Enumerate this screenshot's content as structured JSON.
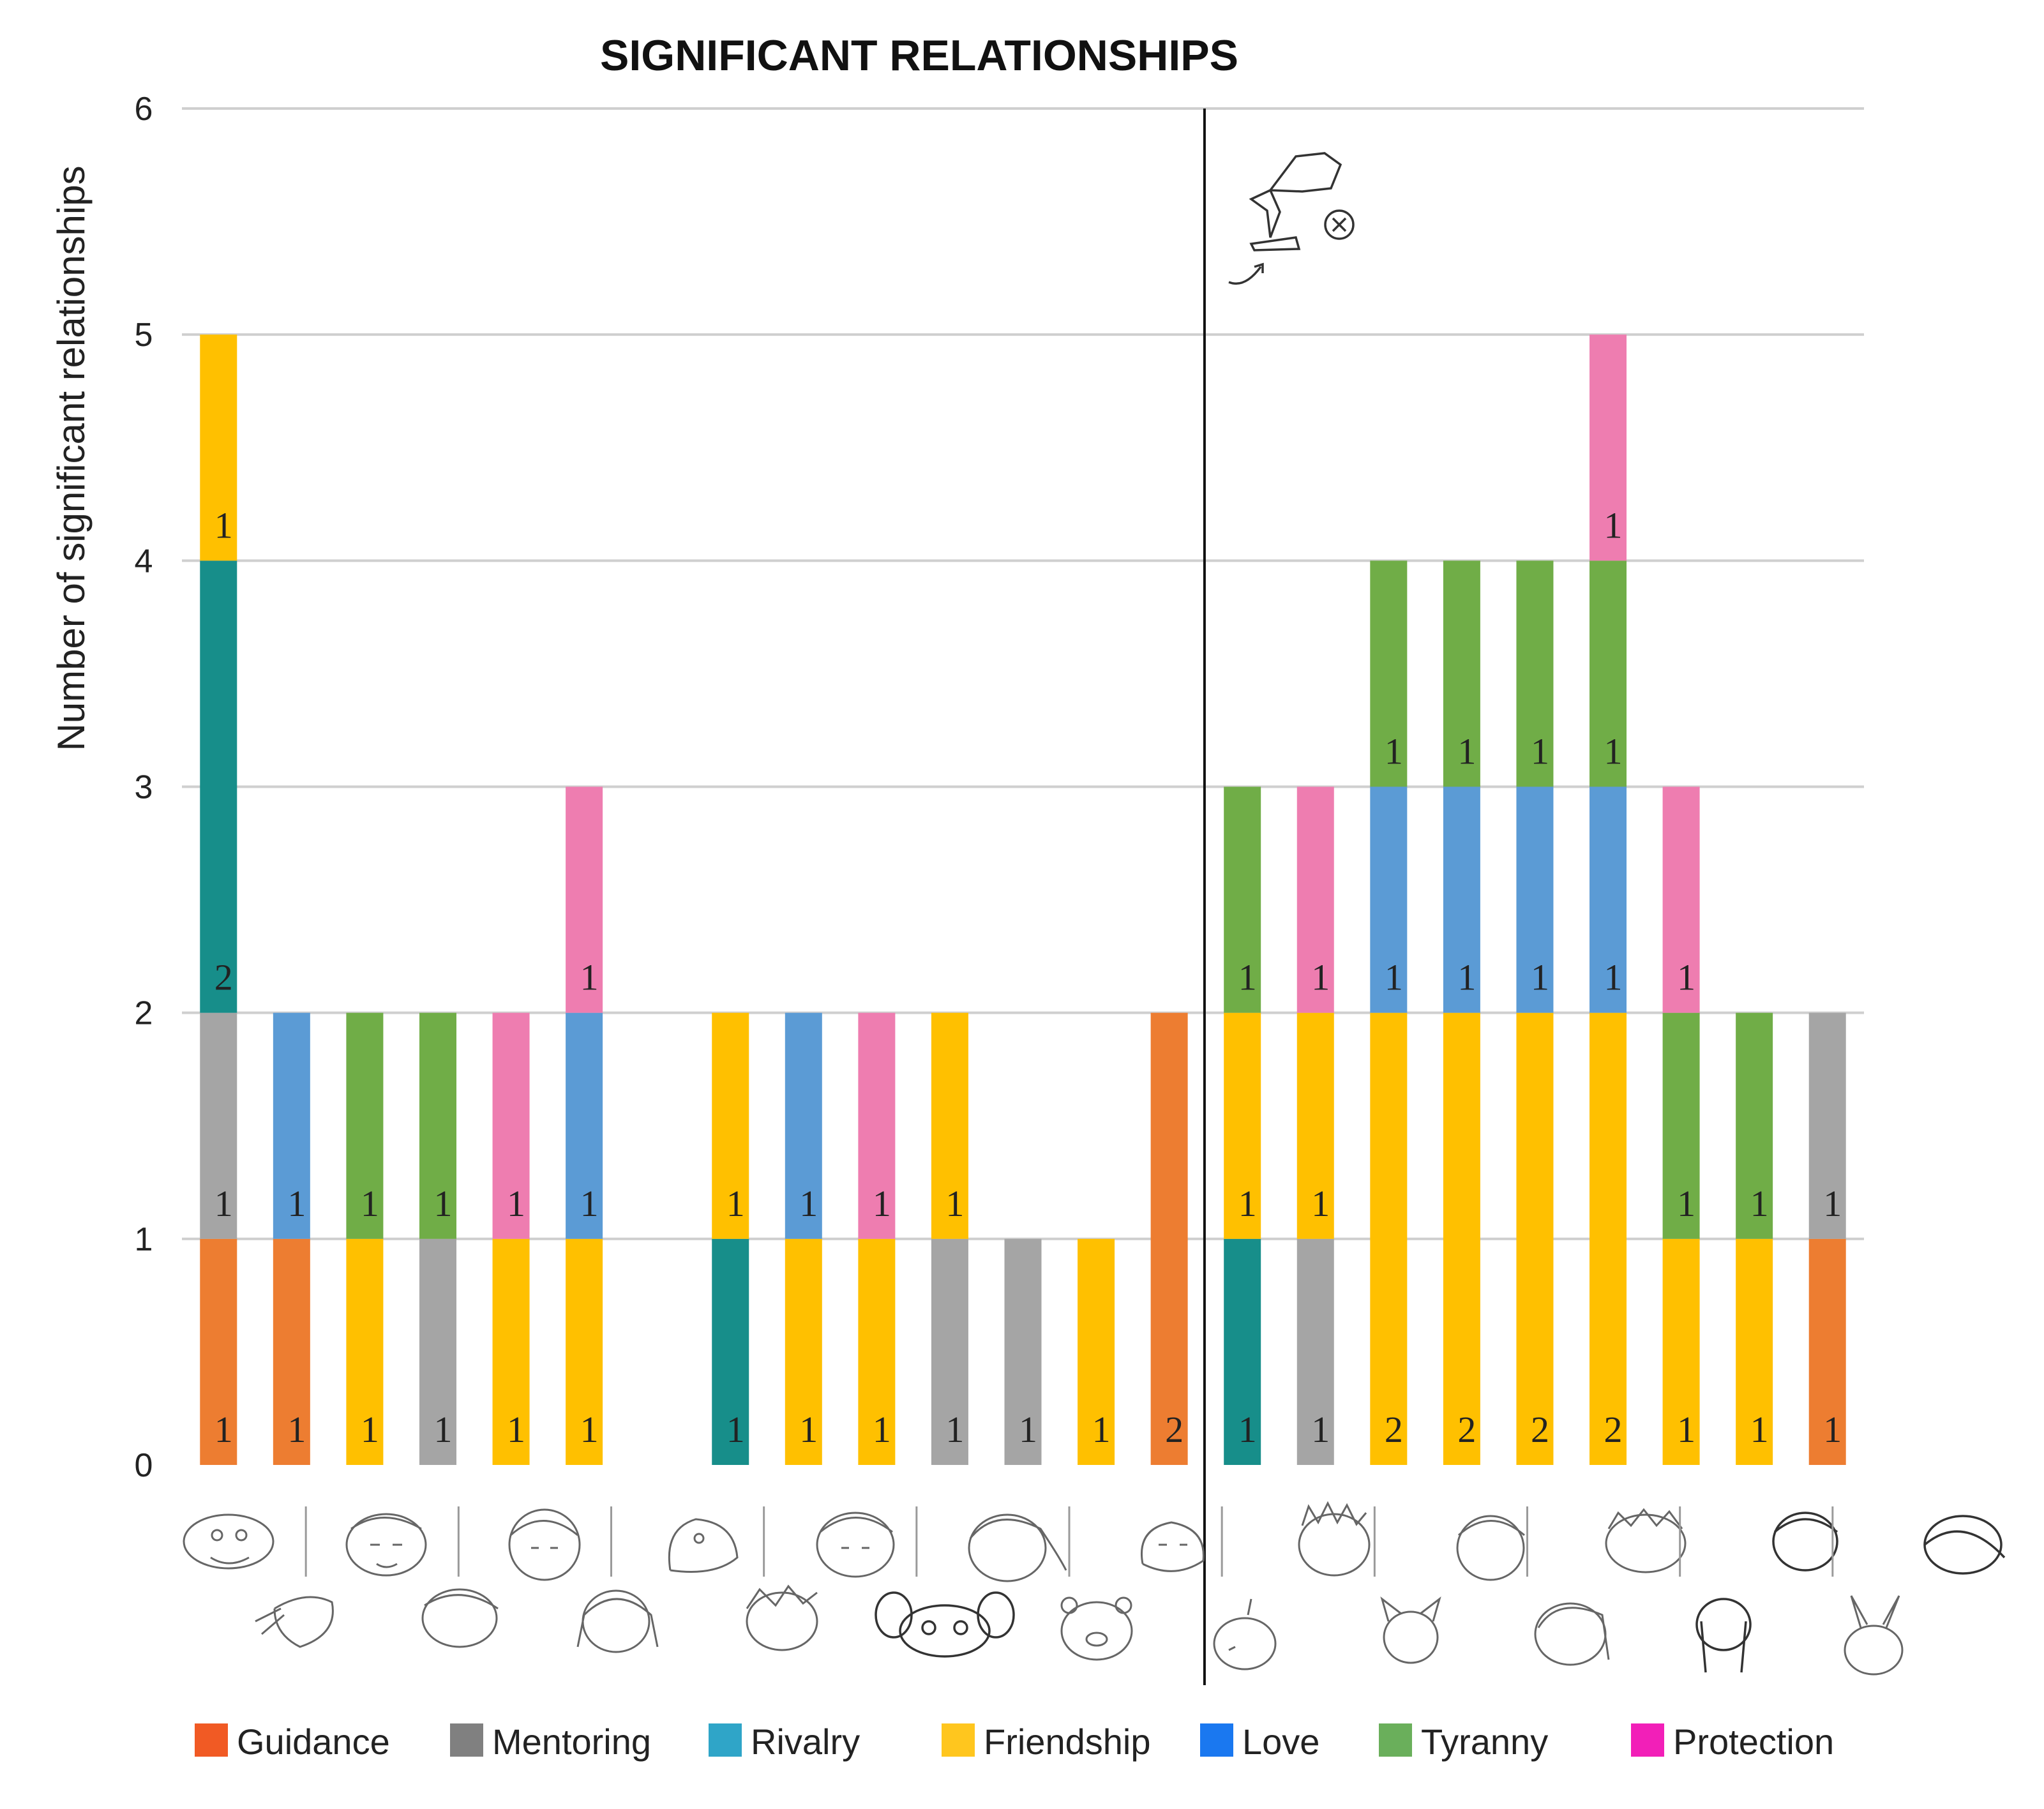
{
  "chart_data": {
    "type": "bar",
    "stacked": true,
    "title": "SIGNIFICANT RELATIONSHIPS",
    "ylabel": "Number of significant relationships",
    "xlabel": "",
    "ylim": [
      0,
      6
    ],
    "yticks": [
      "0",
      "1",
      "2",
      "3",
      "4",
      "5",
      "6"
    ],
    "grid": true,
    "x_axis": "character portrait sketches",
    "split_after_bar": 14,
    "colors": {
      "Guidance": "#ED7D31",
      "Mentoring": "#A5A5A5",
      "Rivalry": "#178E8A",
      "Friendship": "#FFC000",
      "Love": "#5B9BD5",
      "Tyranny": "#70AD47",
      "Protection": "#EE7DB0"
    },
    "legend_colors": {
      "Guidance": "#F15A24",
      "Mentoring": "#808080",
      "Rivalry": "#2FA5C8",
      "Friendship": "#FFC61E",
      "Love": "#1A78F0",
      "Tyranny": "#6AAF5B",
      "Protection": "#F21FB8"
    },
    "legend": [
      "Guidance",
      "Mentoring",
      "Rivalry",
      "Friendship",
      "Love",
      "Tyranny",
      "Protection"
    ],
    "bars": [
      {
        "segments": [
          {
            "type": "Guidance",
            "value": 1
          },
          {
            "type": "Mentoring",
            "value": 1
          },
          {
            "type": "Rivalry",
            "value": 2
          },
          {
            "type": "Friendship",
            "value": 1
          }
        ]
      },
      {
        "segments": [
          {
            "type": "Guidance",
            "value": 1
          },
          {
            "type": "Love",
            "value": 1
          }
        ]
      },
      {
        "segments": [
          {
            "type": "Friendship",
            "value": 1
          },
          {
            "type": "Tyranny",
            "value": 1
          }
        ]
      },
      {
        "segments": [
          {
            "type": "Mentoring",
            "value": 1
          },
          {
            "type": "Tyranny",
            "value": 1
          }
        ]
      },
      {
        "segments": [
          {
            "type": "Friendship",
            "value": 1
          },
          {
            "type": "Protection",
            "value": 1
          }
        ]
      },
      {
        "segments": [
          {
            "type": "Friendship",
            "value": 1
          },
          {
            "type": "Love",
            "value": 1
          },
          {
            "type": "Protection",
            "value": 1
          }
        ]
      },
      {
        "segments": []
      },
      {
        "segments": [
          {
            "type": "Rivalry",
            "value": 1
          },
          {
            "type": "Friendship",
            "value": 1
          }
        ]
      },
      {
        "segments": [
          {
            "type": "Friendship",
            "value": 1
          },
          {
            "type": "Love",
            "value": 1
          }
        ]
      },
      {
        "segments": [
          {
            "type": "Friendship",
            "value": 1
          },
          {
            "type": "Protection",
            "value": 1
          }
        ]
      },
      {
        "segments": [
          {
            "type": "Mentoring",
            "value": 1
          },
          {
            "type": "Friendship",
            "value": 1
          }
        ]
      },
      {
        "segments": [
          {
            "type": "Mentoring",
            "value": 1
          }
        ]
      },
      {
        "segments": [
          {
            "type": "Friendship",
            "value": 1
          }
        ]
      },
      {
        "segments": [
          {
            "type": "Guidance",
            "value": 2
          }
        ]
      },
      {
        "segments": [
          {
            "type": "Rivalry",
            "value": 1
          },
          {
            "type": "Friendship",
            "value": 1
          },
          {
            "type": "Tyranny",
            "value": 1
          }
        ]
      },
      {
        "segments": [
          {
            "type": "Mentoring",
            "value": 1
          },
          {
            "type": "Friendship",
            "value": 1
          },
          {
            "type": "Protection",
            "value": 1
          }
        ]
      },
      {
        "segments": [
          {
            "type": "Friendship",
            "value": 2
          },
          {
            "type": "Love",
            "value": 1
          },
          {
            "type": "Tyranny",
            "value": 1
          }
        ]
      },
      {
        "segments": [
          {
            "type": "Friendship",
            "value": 2
          },
          {
            "type": "Love",
            "value": 1
          },
          {
            "type": "Tyranny",
            "value": 1
          }
        ]
      },
      {
        "segments": [
          {
            "type": "Friendship",
            "value": 2
          },
          {
            "type": "Love",
            "value": 1
          },
          {
            "type": "Tyranny",
            "value": 1
          }
        ]
      },
      {
        "segments": [
          {
            "type": "Friendship",
            "value": 2
          },
          {
            "type": "Love",
            "value": 1
          },
          {
            "type": "Tyranny",
            "value": 1
          },
          {
            "type": "Protection",
            "value": 1
          }
        ]
      },
      {
        "segments": [
          {
            "type": "Friendship",
            "value": 1
          },
          {
            "type": "Tyranny",
            "value": 1
          },
          {
            "type": "Protection",
            "value": 1
          }
        ]
      },
      {
        "segments": [
          {
            "type": "Friendship",
            "value": 1
          },
          {
            "type": "Tyranny",
            "value": 1
          }
        ]
      },
      {
        "segments": [
          {
            "type": "Guidance",
            "value": 1
          },
          {
            "type": "Mentoring",
            "value": 1
          }
        ]
      }
    ]
  }
}
